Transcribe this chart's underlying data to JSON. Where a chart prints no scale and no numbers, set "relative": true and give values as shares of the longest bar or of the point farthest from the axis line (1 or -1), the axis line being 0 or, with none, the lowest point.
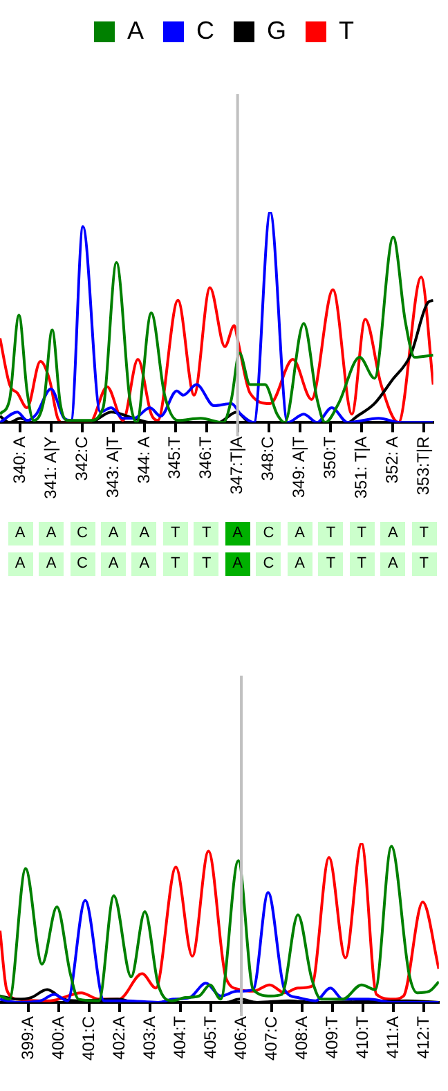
{
  "chart_data": [
    {
      "type": "line",
      "relative": true,
      "legend": "top",
      "grid": false,
      "tick_labels": "x",
      "marker": "none",
      "line_style": "solid",
      "xlim": [
        339.35,
        353.3
      ],
      "xticks": [
        {
          "value": 340,
          "label": "340: A"
        },
        {
          "value": 341,
          "label": "341: A|Y"
        },
        {
          "value": 342,
          "label": "342:C"
        },
        {
          "value": 343,
          "label": "343: A|T"
        },
        {
          "value": 344,
          "label": "344: A"
        },
        {
          "value": 345,
          "label": "345:T"
        },
        {
          "value": 346,
          "label": "346:T"
        },
        {
          "value": 347,
          "label": "347:T|A"
        },
        {
          "value": 348,
          "label": "348:C"
        },
        {
          "value": 349,
          "label": "349: A|T"
        },
        {
          "value": 350,
          "label": "350:T"
        },
        {
          "value": 351,
          "label": "351: T|A"
        },
        {
          "value": 352,
          "label": "352: A"
        },
        {
          "value": 353,
          "label": "353:T|R"
        }
      ],
      "ref_lines": [
        {
          "axis": "x",
          "value": 347,
          "color": "#c0c0c0"
        }
      ],
      "series": [
        {
          "name": "A",
          "color": "#008000",
          "x": [
            339.35,
            339.66,
            339.96,
            340.22,
            340.43,
            340.77,
            341.03,
            341.29,
            341.51,
            342.24,
            342.67,
            343.1,
            343.53,
            343.75,
            344.22,
            344.65,
            345.08,
            345.81,
            346.54,
            346.8,
            347.06,
            347.4,
            347.88,
            348.27,
            348.52,
            349.13,
            349.56,
            349.82,
            350.25,
            350.93,
            351.41,
            352.01,
            352.4,
            352.7,
            353.3
          ],
          "values": [
            0.04,
            0.11,
            0.51,
            0.15,
            0.01,
            0.11,
            0.44,
            0.09,
            0.01,
            0.01,
            0.07,
            0.76,
            0.11,
            0,
            0.52,
            0.13,
            0.01,
            0.02,
            0,
            0.11,
            0.33,
            0.18,
            0.18,
            0.04,
            0,
            0.47,
            0.11,
            0,
            0.09,
            0.31,
            0.21,
            0.88,
            0.48,
            0.31,
            0.32
          ]
        },
        {
          "name": "C",
          "color": "#0000ff",
          "x": [
            339.35,
            339.91,
            340.22,
            340.52,
            340.99,
            341.42,
            341.64,
            342.02,
            342.58,
            342.93,
            343.31,
            343.66,
            344.18,
            344.52,
            345.04,
            345.25,
            345.68,
            346.24,
            346.8,
            347.1,
            347.53,
            348.05,
            348.61,
            349.13,
            349.56,
            350.03,
            350.55,
            351.54,
            352.27,
            353.3
          ],
          "values": [
            0,
            0.05,
            0.01,
            0.04,
            0.16,
            0.02,
            0.01,
            0.93,
            0.05,
            0.07,
            0.02,
            0.02,
            0.07,
            0.03,
            0.15,
            0.13,
            0.18,
            0.08,
            0.09,
            0.04,
            0,
            1,
            0,
            0.04,
            0,
            0.07,
            0,
            0.02,
            0,
            0
          ]
        },
        {
          "name": "G",
          "color": "#000000",
          "x": [
            339.35,
            339.66,
            340.0,
            340.43,
            342.24,
            342.93,
            343.66,
            344.22,
            346.37,
            346.97,
            347.4,
            350.55,
            350.85,
            351.41,
            351.97,
            352.57,
            353.13,
            353.3
          ],
          "values": [
            0.03,
            0,
            0.02,
            0,
            0,
            0.05,
            0.02,
            0,
            0,
            0.05,
            0,
            0,
            0.03,
            0.09,
            0.2,
            0.32,
            0.57,
            0.58
          ]
        },
        {
          "name": "T",
          "color": "#ff0000",
          "x": [
            339.35,
            339.66,
            339.91,
            340.22,
            340.65,
            340.95,
            341.21,
            341.38,
            342.24,
            342.8,
            343.31,
            343.79,
            344.22,
            344.43,
            345.08,
            345.6,
            346.11,
            346.59,
            346.89,
            347.02,
            347.4,
            348.05,
            348.78,
            349.38,
            350.07,
            350.68,
            351.11,
            351.62,
            352.18,
            352.91,
            353.3
          ],
          "values": [
            0.4,
            0.18,
            0.14,
            0.07,
            0.29,
            0.2,
            0.02,
            0,
            0,
            0.17,
            0.01,
            0.3,
            0.04,
            0.01,
            0.58,
            0.13,
            0.64,
            0.36,
            0.46,
            0.38,
            0.14,
            0.09,
            0.3,
            0.11,
            0.63,
            0.04,
            0.49,
            0.18,
            0,
            0.69,
            0.18
          ]
        }
      ]
    },
    {
      "type": "other",
      "annotations": [
        "A",
        "A",
        "C",
        "A",
        "A",
        "T",
        "T",
        "A",
        "C",
        "A",
        "T",
        "T",
        "A",
        "T",
        "A",
        "A",
        "C",
        "A",
        "A",
        "T",
        "T",
        "A",
        "C",
        "A",
        "T",
        "T",
        "A",
        "T"
      ]
    },
    {
      "type": "line",
      "relative": true,
      "legend": false,
      "grid": false,
      "tick_labels": "x",
      "marker": "none",
      "line_style": "solid",
      "xlim": [
        398.07,
        412.49
      ],
      "xticks": [
        {
          "value": 399,
          "label": "399:A"
        },
        {
          "value": 400,
          "label": "400:A"
        },
        {
          "value": 401,
          "label": "401:C"
        },
        {
          "value": 402,
          "label": "402:A"
        },
        {
          "value": 403,
          "label": "403:A"
        },
        {
          "value": 404,
          "label": "404:T"
        },
        {
          "value": 405,
          "label": "405:T"
        },
        {
          "value": 406,
          "label": "406:A"
        },
        {
          "value": 407,
          "label": "407:C"
        },
        {
          "value": 408,
          "label": "408:A"
        },
        {
          "value": 409,
          "label": "409:T"
        },
        {
          "value": 410,
          "label": "410:T"
        },
        {
          "value": 411,
          "label": "411:A"
        },
        {
          "value": 412,
          "label": "412:T"
        }
      ],
      "ref_lines": [
        {
          "axis": "x",
          "value": 406,
          "color": "#c0c0c0"
        }
      ],
      "series": [
        {
          "color": "#008000",
          "x": [
            398.07,
            398.38,
            398.91,
            399.45,
            399.94,
            400.38,
            400.65,
            401.32,
            401.81,
            402.38,
            402.83,
            403.27,
            403.72,
            404.16,
            404.61,
            404.97,
            405.32,
            405.9,
            406.39,
            406.97,
            407.33,
            407.86,
            408.31,
            408.62,
            409.33,
            409.95,
            410.4,
            410.93,
            411.51,
            411.78,
            412.18,
            412.49
          ],
          "values": [
            0.04,
            0.02,
            0.84,
            0.24,
            0.6,
            0.18,
            0.02,
            0.01,
            0.67,
            0.16,
            0.57,
            0.11,
            0.01,
            0.03,
            0.04,
            0.11,
            0.02,
            0.89,
            0.08,
            0.04,
            0.05,
            0.55,
            0.15,
            0.02,
            0.02,
            0.11,
            0.08,
            0.98,
            0.18,
            0.06,
            0.07,
            0.13
          ]
        },
        {
          "color": "#0000ff",
          "x": [
            398.07,
            398.64,
            399.4,
            399.85,
            400.29,
            400.87,
            401.49,
            402.21,
            403.27,
            403.76,
            404.3,
            404.83,
            405.32,
            405.86,
            406.39,
            406.88,
            407.42,
            407.86,
            408.44,
            408.93,
            409.33,
            410.18,
            410.98,
            412.49
          ],
          "values": [
            0.02,
            0,
            0.01,
            0.05,
            0.01,
            0.64,
            0.01,
            0.01,
            0,
            0.02,
            0.03,
            0.12,
            0.04,
            0.07,
            0.08,
            0.69,
            0.08,
            0.03,
            0.01,
            0.09,
            0.02,
            0.02,
            0,
            0
          ]
        },
        {
          "color": "#000000",
          "x": [
            398.07,
            398.64,
            399.09,
            399.62,
            400.16,
            400.65,
            401.94,
            402.52,
            405.5,
            405.95,
            406.52,
            407.55,
            408.44,
            411.42,
            412.49
          ],
          "values": [
            0.04,
            0.02,
            0.03,
            0.08,
            0.02,
            0.01,
            0.02,
            0,
            0,
            0.02,
            0,
            0.01,
            0,
            0.01,
            0
          ]
        },
        {
          "color": "#ff0000",
          "x": [
            398.07,
            398.29,
            398.64,
            399.71,
            400.74,
            401.32,
            401.98,
            402.74,
            403.19,
            403.85,
            404.39,
            404.92,
            405.5,
            405.95,
            406.39,
            406.93,
            407.42,
            407.86,
            408.31,
            408.88,
            409.42,
            409.95,
            410.44,
            410.98,
            411.33,
            411.96,
            412.49
          ],
          "values": [
            0.45,
            0.08,
            0.02,
            0.01,
            0.06,
            0.02,
            0.02,
            0.18,
            0.09,
            0.85,
            0.29,
            0.95,
            0.15,
            0.08,
            0.07,
            0.11,
            0.06,
            0.09,
            0.1,
            0.91,
            0.28,
            1,
            0.05,
            0.02,
            0.04,
            0.63,
            0.21
          ]
        }
      ]
    }
  ]
}
